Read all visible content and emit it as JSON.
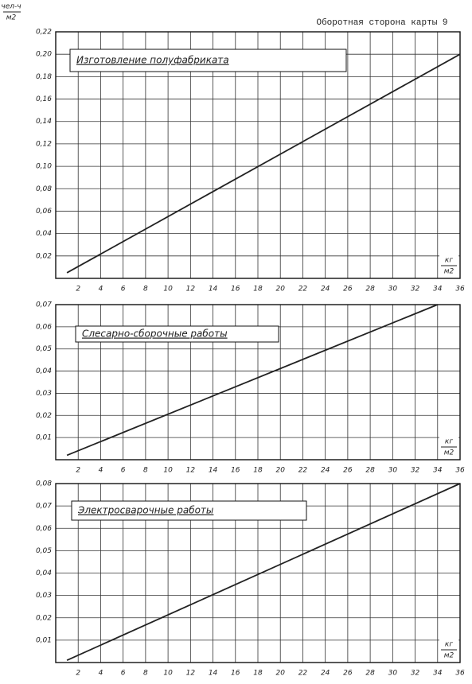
{
  "header": {
    "title": "Оборотная сторона карты 9",
    "y_unit_top": "чел-ч",
    "y_unit_bottom": "м2"
  },
  "chart_data": [
    {
      "type": "line",
      "title": "Изготовление полуфабриката",
      "x_unit_top": "кг",
      "x_unit_bottom": "м2",
      "x": [
        1,
        36
      ],
      "series": [
        {
          "color": "#222",
          "values": [
            0.005,
            0.2
          ]
        }
      ],
      "xlim": [
        0,
        36
      ],
      "xticks": [
        2,
        4,
        6,
        8,
        10,
        12,
        14,
        16,
        18,
        20,
        22,
        24,
        26,
        28,
        30,
        32,
        34,
        36
      ],
      "ylim": [
        0,
        0.22
      ],
      "yticks": [
        {
          "value": 0.02,
          "label": "0,02"
        },
        {
          "value": 0.04,
          "label": "0,04"
        },
        {
          "value": 0.06,
          "label": "0,06"
        },
        {
          "value": 0.08,
          "label": "0,08"
        },
        {
          "value": 0.1,
          "label": "0,10"
        },
        {
          "value": 0.12,
          "label": "0,12"
        },
        {
          "value": 0.14,
          "label": "0,14"
        },
        {
          "value": 0.16,
          "label": "0,16"
        },
        {
          "value": 0.18,
          "label": "0,18"
        },
        {
          "value": 0.2,
          "label": "0,20"
        },
        {
          "value": 0.22,
          "label": "0,22"
        }
      ],
      "grid": true
    },
    {
      "type": "line",
      "title": "Слесарно-сборочные работы",
      "x_unit_top": "кг",
      "x_unit_bottom": "м2",
      "x": [
        1,
        34
      ],
      "series": [
        {
          "color": "#222",
          "values": [
            0.002,
            0.07
          ]
        }
      ],
      "xlim": [
        0,
        36
      ],
      "xticks": [
        2,
        4,
        6,
        8,
        10,
        12,
        14,
        16,
        18,
        20,
        22,
        24,
        26,
        28,
        30,
        32,
        34,
        36
      ],
      "ylim": [
        0,
        0.07
      ],
      "yticks": [
        {
          "value": 0.01,
          "label": "0,01"
        },
        {
          "value": 0.02,
          "label": "0,02"
        },
        {
          "value": 0.03,
          "label": "0,03"
        },
        {
          "value": 0.04,
          "label": "0,04"
        },
        {
          "value": 0.05,
          "label": "0,05"
        },
        {
          "value": 0.06,
          "label": "0,06"
        },
        {
          "value": 0.07,
          "label": "0,07"
        }
      ],
      "grid": true
    },
    {
      "type": "line",
      "title": "Электросварочные работы",
      "x_unit_top": "кг",
      "x_unit_bottom": "м2",
      "x": [
        1,
        36
      ],
      "series": [
        {
          "color": "#222",
          "values": [
            0.001,
            0.08
          ]
        }
      ],
      "xlim": [
        0,
        36
      ],
      "xticks": [
        2,
        4,
        6,
        8,
        10,
        12,
        14,
        16,
        18,
        20,
        22,
        24,
        26,
        28,
        30,
        32,
        34,
        36
      ],
      "ylim": [
        0,
        0.08
      ],
      "yticks": [
        {
          "value": 0.01,
          "label": "0,01"
        },
        {
          "value": 0.02,
          "label": "0,02"
        },
        {
          "value": 0.03,
          "label": "0,03"
        },
        {
          "value": 0.04,
          "label": "0,04"
        },
        {
          "value": 0.05,
          "label": "0,05"
        },
        {
          "value": 0.06,
          "label": "0,06"
        },
        {
          "value": 0.07,
          "label": "0,07"
        },
        {
          "value": 0.08,
          "label": "0,08"
        }
      ],
      "grid": true
    }
  ]
}
